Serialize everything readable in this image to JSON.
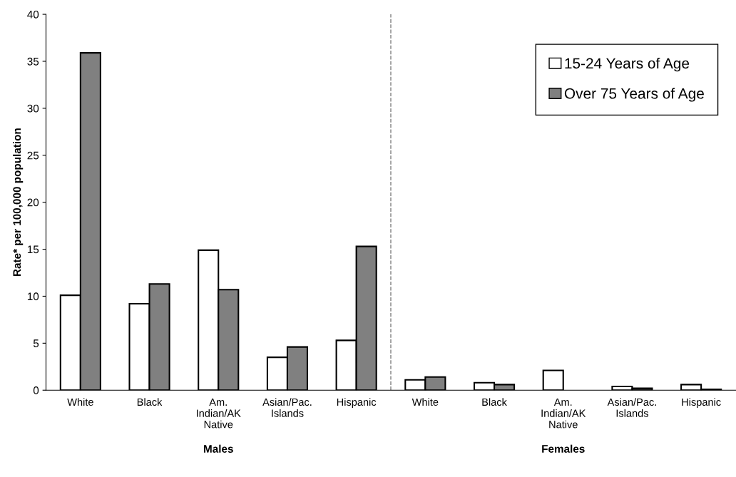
{
  "chart_data": {
    "type": "bar",
    "ylabel": "Rate* per 100,000 population",
    "categories": [
      "White",
      "Black",
      "Am.\nIndian/AK\nNative",
      "Asian/Pac.\nIslands",
      "Hispanic",
      "White",
      "Black",
      "Am.\nIndian/AK\nNative",
      "Asian/Pac.\nIslands",
      "Hispanic"
    ],
    "series": [
      {
        "name": "15-24 Years of Age",
        "color": "#ffffff",
        "values": [
          10.1,
          9.2,
          14.9,
          3.5,
          5.3,
          1.1,
          0.8,
          2.1,
          0.4,
          0.6
        ]
      },
      {
        "name": "Over 75 Years of Age",
        "color": "#808080",
        "values": [
          35.9,
          11.3,
          10.7,
          4.6,
          15.3,
          1.4,
          0.6,
          null,
          0.2,
          0.1
        ]
      }
    ],
    "ylim": [
      0,
      40
    ],
    "yticks": [
      0,
      5,
      10,
      15,
      20,
      25,
      30,
      35,
      40
    ],
    "annotations": [
      "Males",
      "Females"
    ],
    "grid": false,
    "legend": "top right"
  }
}
